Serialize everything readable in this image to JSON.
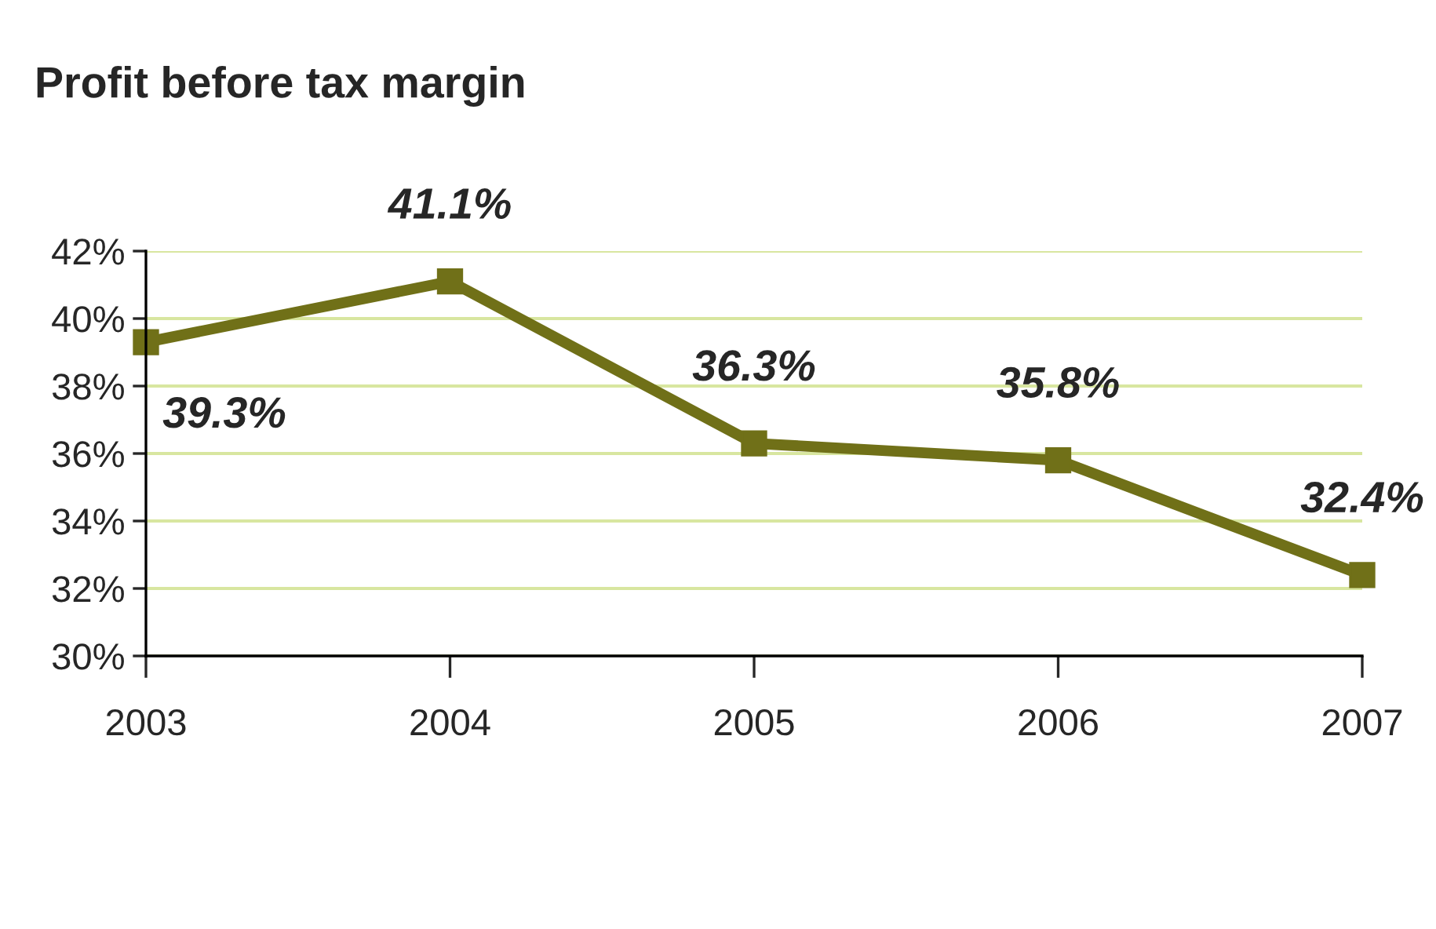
{
  "chart_data": {
    "type": "line",
    "title": "Profit before tax margin",
    "categories": [
      "2003",
      "2004",
      "2005",
      "2006",
      "2007"
    ],
    "series": [
      {
        "color": "#707018",
        "values": [
          39.3,
          41.1,
          36.3,
          35.8,
          32.4
        ],
        "value_labels": [
          "39.3%",
          "41.1%",
          "36.3%",
          "35.8%",
          "32.4%"
        ]
      }
    ],
    "ylim": [
      30,
      42
    ],
    "yticks": [
      {
        "value": 30,
        "label": "30%"
      },
      {
        "value": 32,
        "label": "32%"
      },
      {
        "value": 34,
        "label": "34%"
      },
      {
        "value": 36,
        "label": "36%"
      },
      {
        "value": 38,
        "label": "38%"
      },
      {
        "value": 40,
        "label": "40%"
      },
      {
        "value": 42,
        "label": "42%"
      }
    ],
    "grid": "y",
    "marker": "square",
    "line_style": "solid",
    "legend": false
  }
}
